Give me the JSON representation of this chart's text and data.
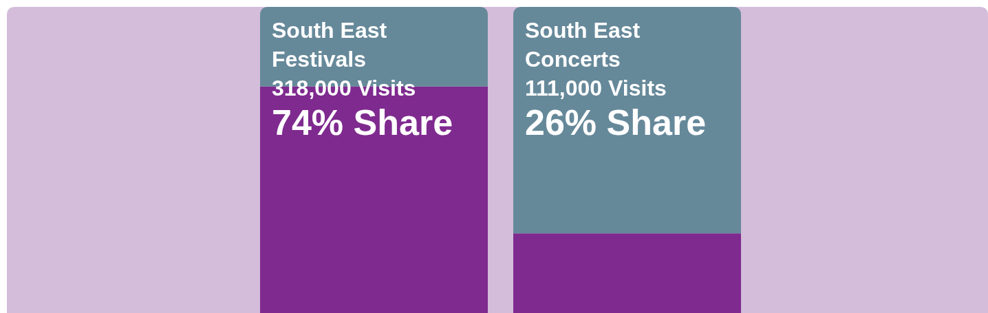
{
  "chart_data": {
    "type": "bar",
    "stacked": true,
    "categories": [
      "South East Festivals",
      "South East Concerts"
    ],
    "ylim": [
      0,
      100
    ],
    "series": [
      {
        "color": "#7f2a8f",
        "values": [
          74,
          26
        ],
        "value_labels": [
          "74% Share",
          "26% Share"
        ]
      },
      {
        "color": "#66899a",
        "values": [
          26,
          74
        ]
      }
    ],
    "annotations": [
      "318,000 Visits",
      "111,000 Visits"
    ]
  }
}
